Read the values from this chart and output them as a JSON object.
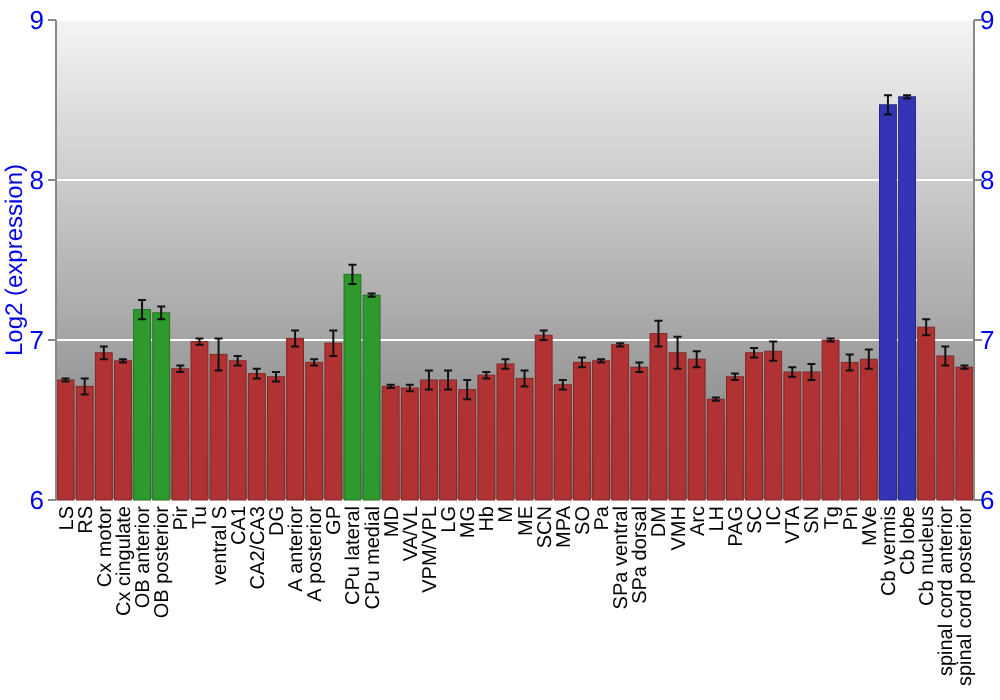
{
  "chart_data": {
    "type": "bar",
    "ylabel": "Log2 (expression)",
    "categories": [
      "LS",
      "RS",
      "Cx motor",
      "Cx cingulate",
      "OB anterior",
      "OB posterior",
      "Pir",
      "Tu",
      "ventral S",
      "CA1",
      "CA2/CA3",
      "DG",
      "A anterior",
      "A posterior",
      "GP",
      "CPu lateral",
      "CPu medial",
      "MD",
      "VA/VL",
      "VPM/VPL",
      "LG",
      "MG",
      "Hb",
      "M",
      "ME",
      "SCN",
      "MPA",
      "SO",
      "Pa",
      "SPa ventral",
      "SPa dorsal",
      "DM",
      "VMH",
      "Arc",
      "LH",
      "PAG",
      "SC",
      "IC",
      "VTA",
      "SN",
      "Tg",
      "Pn",
      "MVe",
      "Cb vermis",
      "Cb lobe",
      "Cb nucleus",
      "spinal cord anterior",
      "spinal cord posterior"
    ],
    "values": [
      6.75,
      6.71,
      6.92,
      6.87,
      7.19,
      7.17,
      6.82,
      6.99,
      6.91,
      6.87,
      6.79,
      6.77,
      7.01,
      6.86,
      6.98,
      7.41,
      7.28,
      6.71,
      6.7,
      6.75,
      6.75,
      6.69,
      6.78,
      6.85,
      6.76,
      7.03,
      6.72,
      6.86,
      6.87,
      6.97,
      6.83,
      7.04,
      6.92,
      6.88,
      6.63,
      6.77,
      6.92,
      6.93,
      6.8,
      6.8,
      7.0,
      6.86,
      6.88,
      8.47,
      8.52,
      7.08,
      6.9,
      6.83
    ],
    "errors": [
      0.01,
      0.05,
      0.04,
      0.01,
      0.06,
      0.04,
      0.02,
      0.02,
      0.1,
      0.03,
      0.03,
      0.03,
      0.05,
      0.02,
      0.08,
      0.06,
      0.01,
      0.01,
      0.02,
      0.06,
      0.06,
      0.06,
      0.02,
      0.03,
      0.05,
      0.03,
      0.03,
      0.03,
      0.01,
      0.01,
      0.03,
      0.08,
      0.1,
      0.05,
      0.01,
      0.02,
      0.03,
      0.06,
      0.03,
      0.05,
      0.01,
      0.05,
      0.06,
      0.06,
      0.01,
      0.05,
      0.06,
      0.01
    ],
    "colors": [
      "#b03232",
      "#b03232",
      "#b03232",
      "#b03232",
      "#2e9a2e",
      "#2e9a2e",
      "#b03232",
      "#b03232",
      "#b03232",
      "#b03232",
      "#b03232",
      "#b03232",
      "#b03232",
      "#b03232",
      "#b03232",
      "#2e9a2e",
      "#2e9a2e",
      "#b03232",
      "#b03232",
      "#b03232",
      "#b03232",
      "#b03232",
      "#b03232",
      "#b03232",
      "#b03232",
      "#b03232",
      "#b03232",
      "#b03232",
      "#b03232",
      "#b03232",
      "#b03232",
      "#b03232",
      "#b03232",
      "#b03232",
      "#b03232",
      "#b03232",
      "#b03232",
      "#b03232",
      "#b03232",
      "#b03232",
      "#b03232",
      "#b03232",
      "#b03232",
      "#3434b4",
      "#3434b4",
      "#b03232",
      "#b03232",
      "#b03232"
    ],
    "ylim": [
      6,
      9
    ],
    "yticks": [
      6,
      7,
      8,
      9
    ],
    "y2lim": [
      6,
      9
    ],
    "y2ticks": [
      6,
      7,
      8,
      9
    ],
    "grid": "y"
  }
}
